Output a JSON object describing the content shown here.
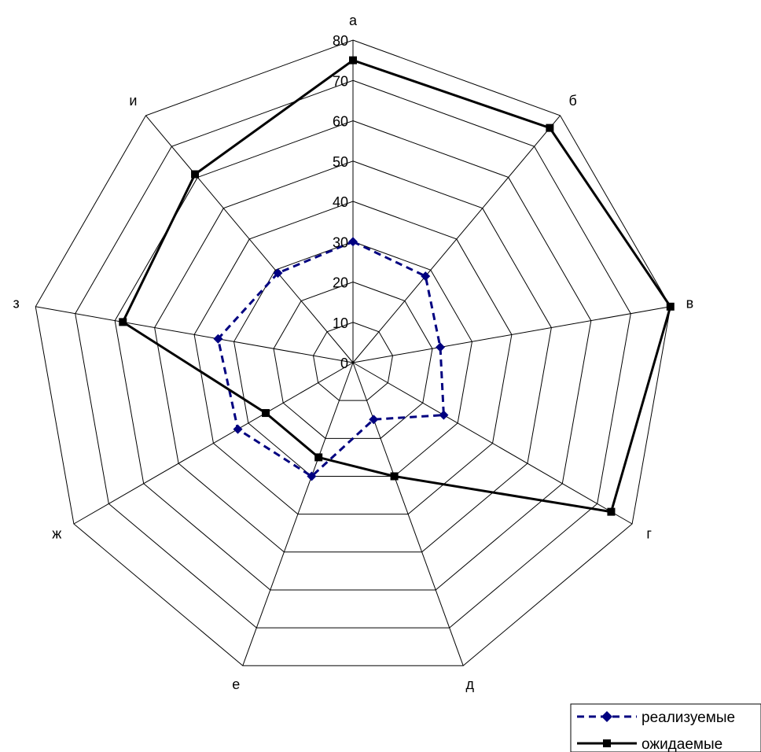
{
  "chart_data": {
    "type": "radar",
    "title": "",
    "categories": [
      "а",
      "б",
      "в",
      "г",
      "д",
      "е",
      "ж",
      "з",
      "и"
    ],
    "rlim": [
      0,
      80
    ],
    "ticks": [
      0,
      10,
      20,
      30,
      40,
      50,
      60,
      70,
      80
    ],
    "tick_labels": [
      "0",
      "10",
      "20",
      "30",
      "40",
      "50",
      "60",
      "70",
      "80"
    ],
    "series": [
      {
        "name": "реализуемые",
        "values": [
          30,
          28,
          22,
          26,
          15,
          30,
          33,
          34,
          29
        ],
        "color": "#000080",
        "line": "dashed",
        "marker": "diamond"
      },
      {
        "name": "ожидаемые",
        "values": [
          75,
          76,
          80,
          74,
          30,
          25,
          25,
          58,
          61
        ],
        "color": "#000000",
        "line": "solid",
        "marker": "square"
      }
    ],
    "grid": true,
    "legend": "bottom-right"
  }
}
